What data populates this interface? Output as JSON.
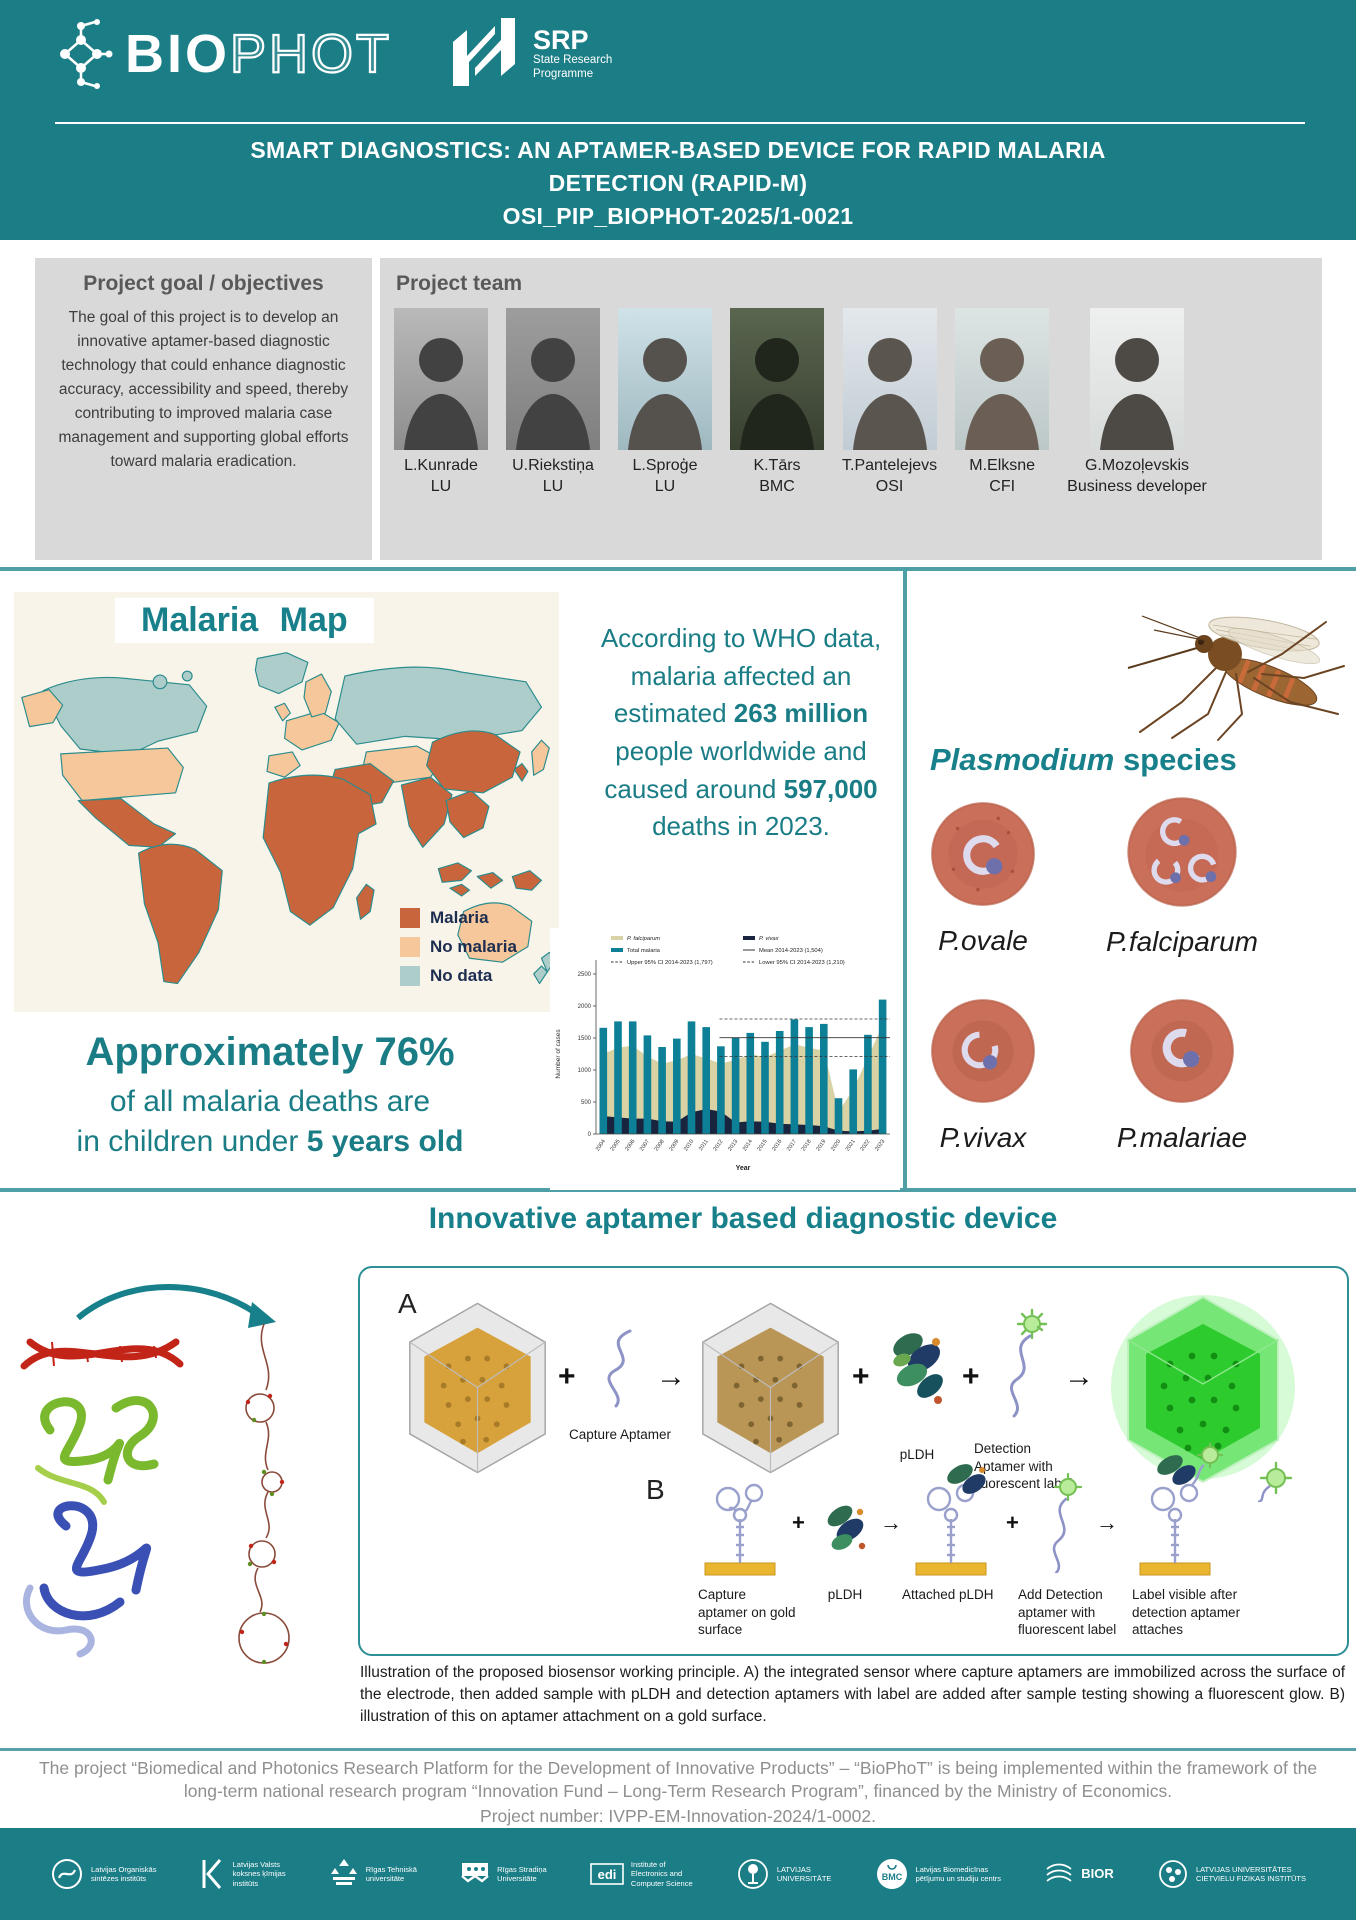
{
  "header": {
    "brand_bold": "BIO",
    "brand_light": "PHOT",
    "srp_abbr": "SRP",
    "srp_line1": "State Research",
    "srp_line2": "Programme",
    "title_line1": "SMART DIAGNOSTICS: AN APTAMER-BASED DEVICE FOR RAPID MALARIA",
    "title_line2": "DETECTION (RAPID-M)",
    "title_line3": "OSI_PIP_BIOPHOT-2025/1-0021"
  },
  "goal": {
    "heading": "Project goal / objectives",
    "body": "The goal of this project is to develop an innovative aptamer-based diagnostic technology that could enhance diagnostic accuracy, accessibility and speed, thereby contributing to improved malaria case management and supporting global efforts toward malaria eradication."
  },
  "team": {
    "heading": "Project team",
    "members": [
      {
        "name": "L.Kunrade",
        "affiliation": "LU"
      },
      {
        "name": "U.Riekstiņa",
        "affiliation": "LU"
      },
      {
        "name": "L.Sproģe",
        "affiliation": "LU"
      },
      {
        "name": "K.Tārs",
        "affiliation": "BMC"
      },
      {
        "name": "T.Pantelejevs",
        "affiliation": "OSI"
      },
      {
        "name": "M.Elksne",
        "affiliation": "CFI"
      },
      {
        "name": "G.Mozoļevskis",
        "affiliation": "Business developer"
      }
    ]
  },
  "malaria_map": {
    "title": "Malaria Map",
    "legend": [
      {
        "label": "Malaria",
        "color": "#c8653c"
      },
      {
        "label": "No malaria",
        "color": "#f6c79b"
      },
      {
        "label": "No data",
        "color": "#adcdca"
      }
    ]
  },
  "who": {
    "p1": "According to WHO data, malaria affected an estimated ",
    "b1": "263 million",
    "p2": " people worldwide and caused around ",
    "b2": "597,000",
    "p3": " deaths in 2023."
  },
  "deaths_stat": {
    "line1": "Approximately 76%",
    "line2": "of all malaria deaths are",
    "line3_prefix": "in children under ",
    "line3_bold": "5 years old"
  },
  "plasmodium": {
    "heading_italic": "Plasmodium",
    "heading_rest": " species",
    "species": [
      "P.ovale",
      "P.falciparum",
      "P.vivax",
      "P.malariae"
    ]
  },
  "chart_data": {
    "type": "bar",
    "title": "",
    "xlabel": "Year",
    "ylabel": "Number of cases",
    "ylim": [
      0,
      2500
    ],
    "yticks": [
      0,
      500,
      1000,
      1500,
      2000,
      2500
    ],
    "categories": [
      "2004",
      "2005",
      "2006",
      "2007",
      "2008",
      "2009",
      "2010",
      "2011",
      "2012",
      "2013",
      "2014",
      "2015",
      "2016",
      "2017",
      "2018",
      "2019",
      "2020",
      "2021",
      "2022",
      "2023"
    ],
    "series": [
      {
        "name": "Total malaria",
        "kind": "bar",
        "color": "#0d7f96",
        "values": [
          1660,
          1760,
          1760,
          1540,
          1360,
          1490,
          1760,
          1670,
          1370,
          1500,
          1580,
          1440,
          1610,
          1790,
          1670,
          1720,
          560,
          1010,
          1550,
          2100
        ]
      },
      {
        "name": "P. falciparum",
        "kind": "area1",
        "color": "#d8d2a4",
        "values": [
          1250,
          1350,
          1380,
          1210,
          1100,
          1150,
          1250,
          1180,
          1100,
          1160,
          1250,
          1200,
          1300,
          1400,
          1350,
          1300,
          350,
          700,
          1200,
          1700
        ]
      },
      {
        "name": "P. vivax",
        "kind": "area2",
        "color": "#19253f",
        "values": [
          280,
          260,
          240,
          240,
          200,
          190,
          340,
          390,
          350,
          180,
          200,
          190,
          160,
          150,
          140,
          120,
          50,
          40,
          50,
          80
        ]
      }
    ],
    "reference_lines": [
      {
        "name": "Mean 2014-2023 (1,504)",
        "value": 1504,
        "style": "solid"
      },
      {
        "name": "Upper 95% CI 2014-2023 (1,797)",
        "value": 1797,
        "style": "dashed"
      },
      {
        "name": "Lower 95% CI 2014-2023 (1,210)",
        "value": 1210,
        "style": "dashed"
      }
    ],
    "legend_position": "top"
  },
  "device": {
    "heading": "Innovative aptamer based diagnostic device",
    "panel_a": "A",
    "panel_b": "B",
    "op_plus": "+",
    "op_arrow": "→",
    "a_labels": {
      "capture": "Capture Aptamer",
      "pldh": "pLDH",
      "detection": "Detection Aptamer with fluorescent label"
    },
    "b_labels": {
      "capture": "Capture aptamer on gold surface",
      "pldh": "pLDH",
      "attached": "Attached pLDH",
      "add_detection": "Add Detection aptamer with fluorescent label",
      "visible": "Label visible after detection aptamer attaches"
    },
    "caption": "Illustration of the proposed biosensor working principle. A) the integrated sensor where capture aptamers are immobilized across the surface of the electrode, then added sample with pLDH and detection aptamers with label are added after sample testing showing a fluorescent glow. B) illustration of this on aptamer attachment on a gold surface."
  },
  "footer": {
    "text": "The project “Biomedical and Photonics Research Platform for the Development of Innovative Products” – “BioPhoT” is being implemented within the framework of the long-term national research program “Innovation Fund – Long-Term Research Program”, financed by the Ministry of Economics.",
    "project_number": "Project number: IVPP-EM-Innovation-2024/1-0002.",
    "logos": [
      {
        "text": "Latvijas Organiskās\nsintēzes institūts"
      },
      {
        "text": "Latvijas Valsts\nkoksnes ķīmijas\ninstitūts"
      },
      {
        "text": "Rīgas Tehniskā\nuniversitāte"
      },
      {
        "text": "Rīgas Stradiņa\nUniversitāte"
      },
      {
        "text": "Institute of\nElectronics and\nComputer Science"
      },
      {
        "text": "LATVIJAS\nUNIVERSITĀTE"
      },
      {
        "abbr": "BMC",
        "text": "Latvijas Biomedicīnas\npētījumu un studiju centrs"
      },
      {
        "text": "BIOR"
      },
      {
        "text": "LATVIJAS UNIVERSITĀTES\nCIETVIELU FIZIKAS INSTITŪTS"
      }
    ]
  }
}
